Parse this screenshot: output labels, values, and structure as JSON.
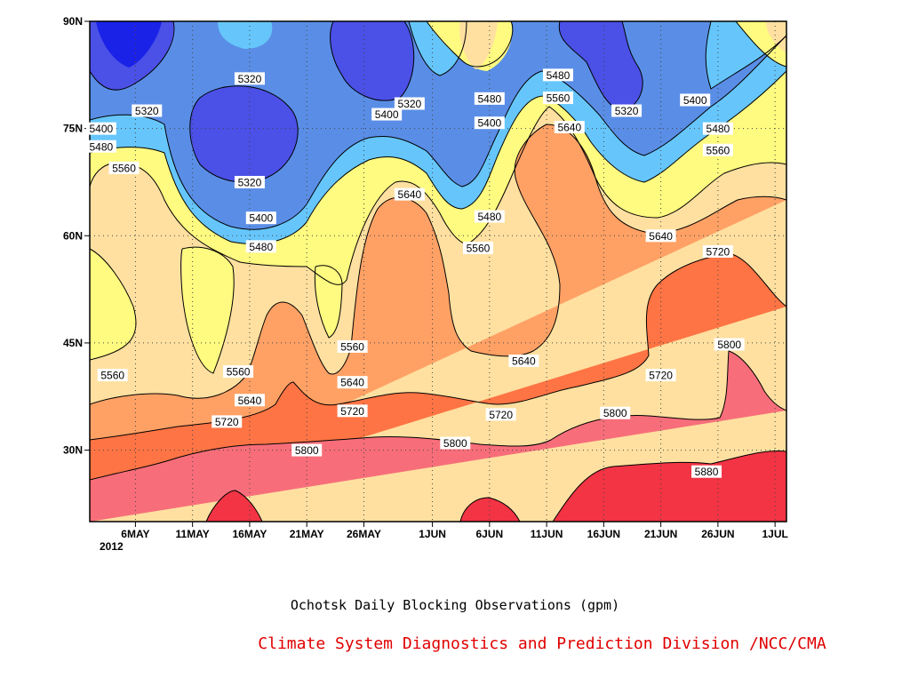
{
  "chart_data": {
    "type": "contour",
    "title": "Ochotsk Daily Blocking Observations (gpm)",
    "credit": "Climate System Diagnostics and Prediction Division /NCC/CMA",
    "xlabel": "",
    "ylabel": "",
    "x_range": [
      "2012-05-02",
      "2012-07-02"
    ],
    "y_range": [
      20,
      90
    ],
    "x_ticks": [
      {
        "date": "2012-05-06",
        "label": "6MAY"
      },
      {
        "date": "2012-05-11",
        "label": "11MAY"
      },
      {
        "date": "2012-05-16",
        "label": "16MAY"
      },
      {
        "date": "2012-05-21",
        "label": "21MAY"
      },
      {
        "date": "2012-05-26",
        "label": "26MAY"
      },
      {
        "date": "2012-06-01",
        "label": "1JUN"
      },
      {
        "date": "2012-06-06",
        "label": "6JUN"
      },
      {
        "date": "2012-06-11",
        "label": "11JUN"
      },
      {
        "date": "2012-06-16",
        "label": "16JUN"
      },
      {
        "date": "2012-06-21",
        "label": "21JUN"
      },
      {
        "date": "2012-06-26",
        "label": "26JUN"
      },
      {
        "date": "2012-07-01",
        "label": "1JUL"
      }
    ],
    "year_label": "2012",
    "y_ticks": [
      {
        "value": 30,
        "label": "30N"
      },
      {
        "value": 45,
        "label": "45N"
      },
      {
        "value": 60,
        "label": "60N"
      },
      {
        "value": 75,
        "label": "75N"
      },
      {
        "value": 90,
        "label": "90N"
      }
    ],
    "grid": "dotted",
    "levels": [
      5320,
      5400,
      5480,
      5560,
      5640,
      5720,
      5800,
      5880
    ],
    "colors": {
      "lt5240": "#1a22e8",
      "5240": "#4b50e6",
      "5320": "#5a8ee6",
      "5400": "#66c6fb",
      "5480": "#fffa80",
      "5560": "#ffe0a0",
      "5640": "#ffa165",
      "5720": "#ff7444",
      "5800": "#f76e7a",
      "5880": "#f23444"
    },
    "contour_labels": [
      {
        "text": "5320",
        "date": "2012-05-07",
        "lat": 77.5
      },
      {
        "text": "5320",
        "date": "2012-05-16",
        "lat": 82.0
      },
      {
        "text": "5320",
        "date": "2012-05-16",
        "lat": 67.5
      },
      {
        "text": "5320",
        "date": "2012-05-30",
        "lat": 78.5
      },
      {
        "text": "5320",
        "date": "2012-06-18",
        "lat": 77.5
      },
      {
        "text": "5400",
        "date": "2012-05-03",
        "lat": 75.0
      },
      {
        "text": "5400",
        "date": "2012-05-17",
        "lat": 62.5
      },
      {
        "text": "5400",
        "date": "2012-05-28",
        "lat": 77.0
      },
      {
        "text": "5400",
        "date": "2012-06-06",
        "lat": 75.8
      },
      {
        "text": "5400",
        "date": "2012-06-24",
        "lat": 79.0
      },
      {
        "text": "5480",
        "date": "2012-05-03",
        "lat": 72.5
      },
      {
        "text": "5480",
        "date": "2012-05-17",
        "lat": 58.5
      },
      {
        "text": "5480",
        "date": "2012-06-06",
        "lat": 62.7
      },
      {
        "text": "5480",
        "date": "2012-06-06",
        "lat": 79.2
      },
      {
        "text": "5480",
        "date": "2012-06-12",
        "lat": 82.5
      },
      {
        "text": "5480",
        "date": "2012-06-26",
        "lat": 75.0
      },
      {
        "text": "5560",
        "date": "2012-05-05",
        "lat": 69.5
      },
      {
        "text": "5560",
        "date": "2012-05-04",
        "lat": 40.5
      },
      {
        "text": "5560",
        "date": "2012-05-15",
        "lat": 41.0
      },
      {
        "text": "5560",
        "date": "2012-05-25",
        "lat": 44.5
      },
      {
        "text": "5560",
        "date": "2012-06-05",
        "lat": 58.3
      },
      {
        "text": "5560",
        "date": "2012-06-12",
        "lat": 79.3
      },
      {
        "text": "5560",
        "date": "2012-06-26",
        "lat": 72.0
      },
      {
        "text": "5640",
        "date": "2012-05-30",
        "lat": 65.8
      },
      {
        "text": "5640",
        "date": "2012-06-13",
        "lat": 75.2
      },
      {
        "text": "5640",
        "date": "2012-06-21",
        "lat": 60.0
      },
      {
        "text": "5640",
        "date": "2012-06-09",
        "lat": 42.5
      },
      {
        "text": "5640",
        "date": "2012-05-25",
        "lat": 39.5
      },
      {
        "text": "5640",
        "date": "2012-05-16",
        "lat": 37.0
      },
      {
        "text": "5720",
        "date": "2012-05-14",
        "lat": 34.0
      },
      {
        "text": "5720",
        "date": "2012-05-25",
        "lat": 35.5
      },
      {
        "text": "5720",
        "date": "2012-06-07",
        "lat": 35.0
      },
      {
        "text": "5720",
        "date": "2012-06-21",
        "lat": 40.5
      },
      {
        "text": "5720",
        "date": "2012-06-26",
        "lat": 57.8
      },
      {
        "text": "5800",
        "date": "2012-05-21",
        "lat": 30.0
      },
      {
        "text": "5800",
        "date": "2012-06-03",
        "lat": 31.0
      },
      {
        "text": "5800",
        "date": "2012-06-17",
        "lat": 35.2
      },
      {
        "text": "5800",
        "date": "2012-06-27",
        "lat": 44.8
      },
      {
        "text": "5880",
        "date": "2012-06-25",
        "lat": 27.0
      }
    ]
  },
  "caption": {
    "title": "Ochotsk Daily Blocking Observations (gpm)",
    "credit": "Climate System Diagnostics and Prediction Division /NCC/CMA"
  }
}
